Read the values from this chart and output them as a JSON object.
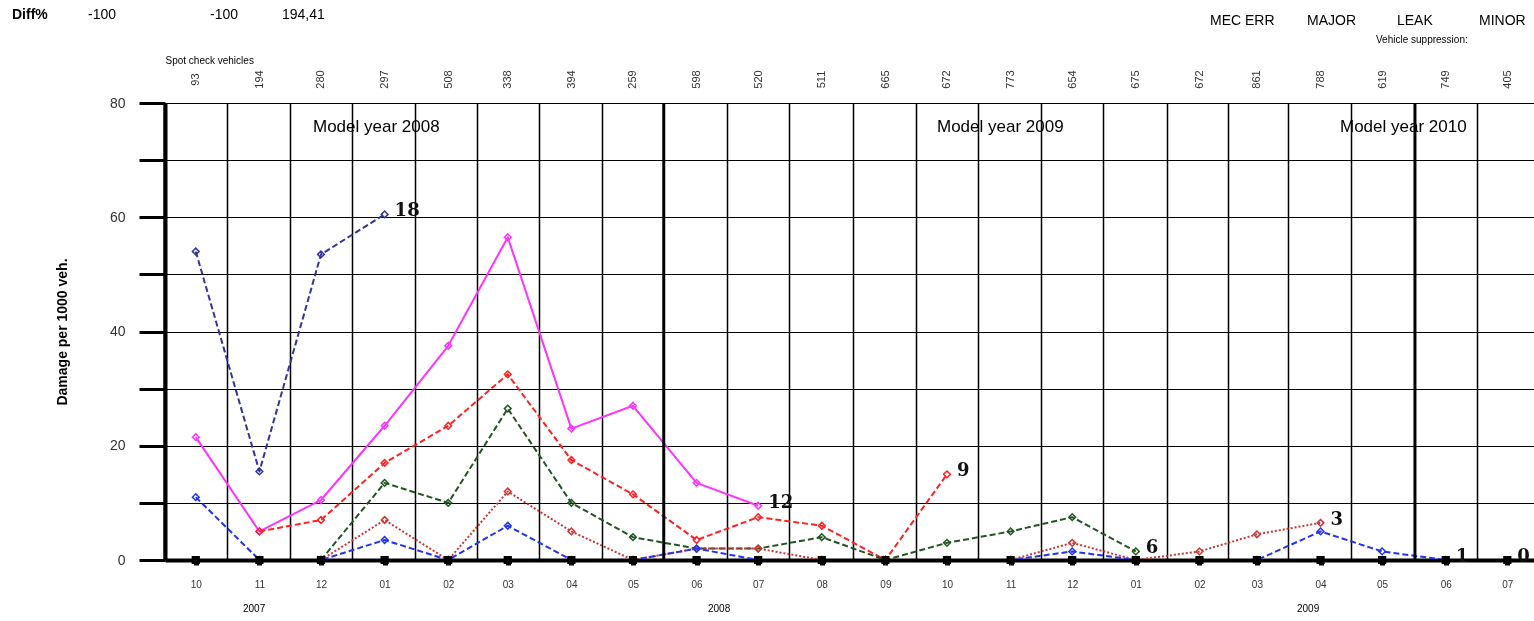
{
  "chart_data": {
    "type": "line",
    "x": [
      "2007-10",
      "2007-11",
      "2007-12",
      "2008-01",
      "2008-02",
      "2008-03",
      "2008-04",
      "2008-05",
      "2008-06",
      "2008-07",
      "2008-08",
      "2008-09",
      "2008-10",
      "2008-11",
      "2008-12",
      "2009-01",
      "2009-02",
      "2009-03",
      "2009-04",
      "2009-05",
      "2009-06",
      "2009-07"
    ],
    "xlim": [
      "2007-09-16",
      "2009-07-14"
    ],
    "xticks": [
      {
        "value": "2007-10",
        "label": "10"
      },
      {
        "value": "2007-11",
        "label": "11"
      },
      {
        "value": "2007-12",
        "label": "12"
      },
      {
        "value": "2008-01",
        "label": "01"
      },
      {
        "value": "2008-02",
        "label": "02"
      },
      {
        "value": "2008-03",
        "label": "03"
      },
      {
        "value": "2008-04",
        "label": "04"
      },
      {
        "value": "2008-05",
        "label": "05"
      },
      {
        "value": "2008-06",
        "label": "06"
      },
      {
        "value": "2008-07",
        "label": "07"
      },
      {
        "value": "2008-08",
        "label": "08"
      },
      {
        "value": "2008-09",
        "label": "09"
      },
      {
        "value": "2008-10",
        "label": "10"
      },
      {
        "value": "2008-11",
        "label": "11"
      },
      {
        "value": "2008-12",
        "label": "12"
      },
      {
        "value": "2009-01",
        "label": "01"
      },
      {
        "value": "2009-02",
        "label": "02"
      },
      {
        "value": "2009-03",
        "label": "03"
      },
      {
        "value": "2009-04",
        "label": "04"
      },
      {
        "value": "2009-05",
        "label": "05"
      },
      {
        "value": "2009-06",
        "label": "06"
      },
      {
        "value": "2009-07",
        "label": "07"
      },
      {
        "value": "2007-10-16",
        "label": null
      },
      {
        "value": "2007-11-16",
        "label": null
      },
      {
        "value": "2007-12-16",
        "label": null
      },
      {
        "value": "2008-01-16",
        "label": null
      },
      {
        "value": "2008-02-15",
        "label": null
      },
      {
        "value": "2008-03-16",
        "label": null
      },
      {
        "value": "2008-04-16",
        "label": null
      },
      {
        "value": "2008-06-16",
        "label": null
      },
      {
        "value": "2008-07-16",
        "label": null
      },
      {
        "value": "2008-08-16",
        "label": null
      },
      {
        "value": "2008-09-16",
        "label": null
      },
      {
        "value": "2008-10-16",
        "label": null
      },
      {
        "value": "2008-11-16",
        "label": null
      },
      {
        "value": "2008-12-16",
        "label": null
      },
      {
        "value": "2009-01-16",
        "label": null
      },
      {
        "value": "2009-02-15",
        "label": null
      },
      {
        "value": "2009-03-16",
        "label": null
      },
      {
        "value": "2009-04-16",
        "label": null
      },
      {
        "value": "2009-06-16",
        "label": null
      }
    ],
    "x2lim": [
      "2007-09-16",
      "2009-07-14"
    ],
    "x2ticks": [
      {
        "value": "2007-10",
        "label": "93"
      },
      {
        "value": "2007-11",
        "label": "194"
      },
      {
        "value": "2007-12",
        "label": "280"
      },
      {
        "value": "2008-01",
        "label": "297"
      },
      {
        "value": "2008-02",
        "label": "508"
      },
      {
        "value": "2008-03",
        "label": "338"
      },
      {
        "value": "2008-04",
        "label": "394"
      },
      {
        "value": "2008-05",
        "label": "259"
      },
      {
        "value": "2008-06",
        "label": "598"
      },
      {
        "value": "2008-07",
        "label": "520"
      },
      {
        "value": "2008-08",
        "label": "511"
      },
      {
        "value": "2008-09",
        "label": "665"
      },
      {
        "value": "2008-10",
        "label": "672"
      },
      {
        "value": "2008-11",
        "label": "773"
      },
      {
        "value": "2008-12",
        "label": "654"
      },
      {
        "value": "2009-01",
        "label": "675"
      },
      {
        "value": "2009-02",
        "label": "672"
      },
      {
        "value": "2009-03",
        "label": "861"
      },
      {
        "value": "2009-04",
        "label": "788"
      },
      {
        "value": "2009-05",
        "label": "619"
      },
      {
        "value": "2009-06",
        "label": "749"
      },
      {
        "value": "2009-07",
        "label": "405"
      }
    ],
    "x2label": "Spot check vehicles",
    "ylabel": "Damage per 1000 veh.",
    "ylim": [
      0,
      80
    ],
    "yticks": [
      0,
      {
        "value": 10,
        "label": null
      },
      20,
      {
        "value": 30,
        "label": null
      },
      40,
      {
        "value": 50,
        "label": null
      },
      60,
      {
        "value": 70,
        "label": null
      },
      80
    ],
    "grid": true,
    "series": [
      {
        "color": "#333399",
        "line_style": "dashed",
        "marker": "diamond",
        "values": [
          54,
          15.5,
          53.5,
          60.5,
          null,
          null,
          null,
          null,
          null,
          null,
          null,
          null,
          null,
          null,
          null,
          null,
          null,
          null,
          null,
          null,
          null,
          null
        ]
      },
      {
        "color": "#ff33ff",
        "line_style": "solid",
        "marker": "diamond",
        "values": [
          21.5,
          5,
          10.5,
          23.5,
          37.5,
          56.5,
          23,
          27,
          13.5,
          9.5,
          null,
          null,
          null,
          null,
          null,
          null,
          null,
          null,
          null,
          null,
          null,
          null
        ]
      },
      {
        "color": "#ff2222",
        "line_style": "dashed",
        "marker": "diamond",
        "values": [
          null,
          5,
          7,
          17,
          23.5,
          32.5,
          17.5,
          11.5,
          3.5,
          7.5,
          6,
          0,
          15,
          null,
          null,
          null,
          null,
          null,
          null,
          null,
          null,
          null
        ]
      },
      {
        "color": "#225522",
        "line_style": "dashed",
        "marker": "diamond",
        "values": [
          null,
          null,
          0,
          13.5,
          10,
          26.5,
          10,
          4,
          2,
          2,
          4,
          0,
          3,
          5,
          7.5,
          1.5,
          null,
          null,
          null,
          null,
          null,
          null
        ]
      },
      {
        "color": "#cc3333",
        "line_style": "dotted",
        "marker": "diamond",
        "values": [
          null,
          null,
          0,
          7,
          0,
          12,
          5,
          0,
          2,
          2,
          0,
          0,
          0,
          0,
          3,
          0,
          1.5,
          4.5,
          6.5,
          null,
          null,
          null
        ]
      },
      {
        "color": "#2233ee",
        "line_style": "dashed",
        "marker": "diamond",
        "values": [
          11,
          0,
          0,
          3.5,
          0,
          6,
          0,
          0,
          2,
          0,
          0,
          0,
          0,
          0,
          1.5,
          0,
          0,
          0,
          5,
          1.5,
          0,
          null
        ]
      },
      {
        "color": "#000000",
        "line_style": "solid",
        "marker": "square",
        "values": [
          0,
          0,
          0,
          0,
          0,
          0,
          0,
          0,
          0,
          0,
          0,
          0,
          0,
          0,
          0,
          0,
          0,
          0,
          0,
          0,
          0,
          0
        ]
      }
    ],
    "ref_lines": [
      {
        "axis": "x",
        "value": "2007-09-16"
      },
      {
        "axis": "x",
        "value": "2008-05-16"
      },
      {
        "axis": "x",
        "value": "2009-05-17"
      }
    ],
    "annotations": [
      "Diff%",
      "-100",
      "-100",
      "194,41",
      "MEC ERR",
      "MAJOR",
      "LEAK",
      "MINOR",
      "Vehicle suppression:",
      "2007",
      "2008",
      "2009",
      "Model year 2008",
      "Model year 2009",
      "Model year 2010",
      {
        "text": "18",
        "x": "2008-01",
        "y": 60.5
      },
      {
        "text": "12",
        "x": "2008-07",
        "y": 9.5
      },
      {
        "text": "9",
        "x": "2008-10",
        "y": 15
      },
      {
        "text": "6",
        "x": "2009-01",
        "y": 1.5
      },
      {
        "text": "3",
        "x": "2009-04",
        "y": 6.5
      },
      {
        "text": "1",
        "x": "2009-06",
        "y": 0
      },
      {
        "text": "0",
        "x": "2009-07",
        "y": 0
      }
    ]
  }
}
